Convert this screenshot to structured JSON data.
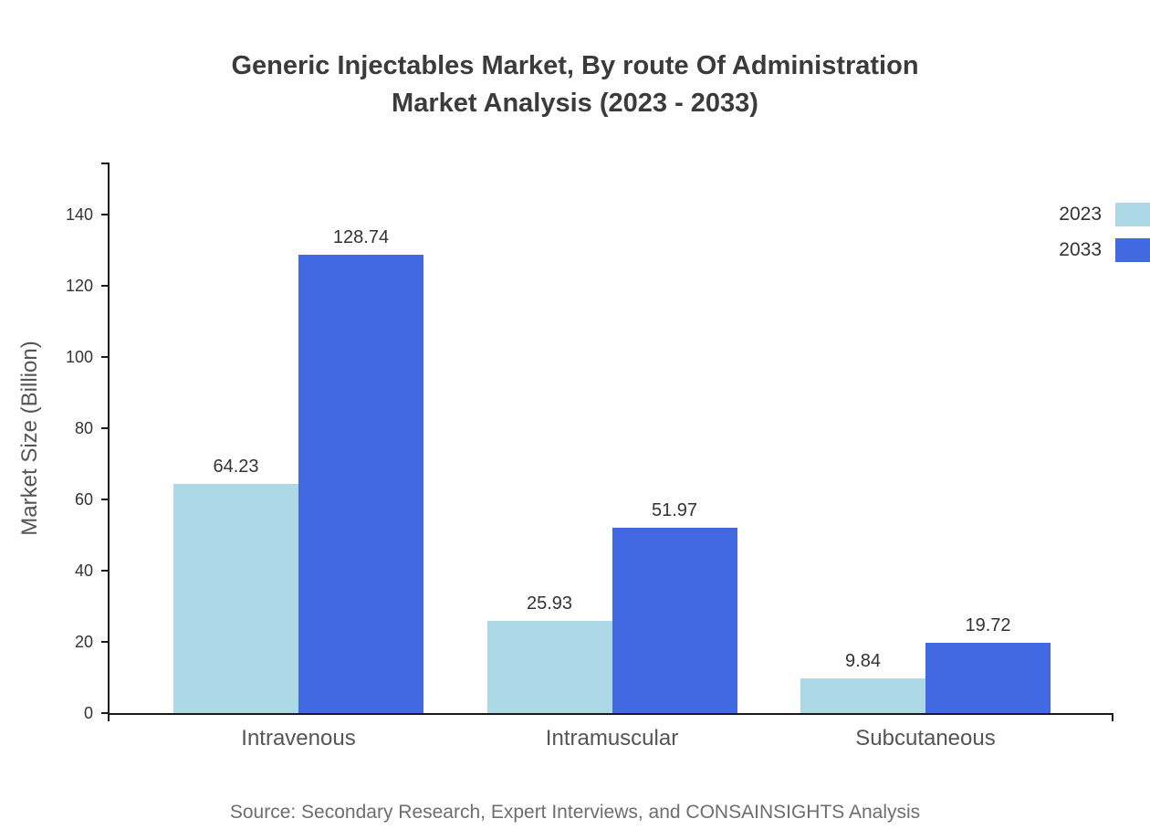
{
  "title": {
    "line1": "Generic Injectables Market, By route Of Administration",
    "line2": "Market Analysis (2023 - 2033)"
  },
  "source": "Source: Secondary Research, Expert Interviews, and CONSAINSIGHTS Analysis",
  "chart_data": {
    "type": "bar",
    "title": "Generic Injectables Market, By route Of Administration Market Analysis (2023 - 2033)",
    "categories": [
      "Intravenous",
      "Intramuscular",
      "Subcutaneous"
    ],
    "series": [
      {
        "name": "2023",
        "color": "#ADD8E6",
        "values": [
          64.23,
          25.93,
          9.84
        ]
      },
      {
        "name": "2033",
        "color": "#4169E1",
        "values": [
          128.74,
          51.97,
          19.72
        ]
      }
    ],
    "xlabel": "",
    "ylabel": "Market Size (Billion)",
    "ylim": [
      0,
      155
    ],
    "yticks": [
      0,
      20,
      40,
      60,
      80,
      100,
      120,
      140
    ],
    "grid": false,
    "legend_position": "top-right",
    "value_labels": true
  }
}
